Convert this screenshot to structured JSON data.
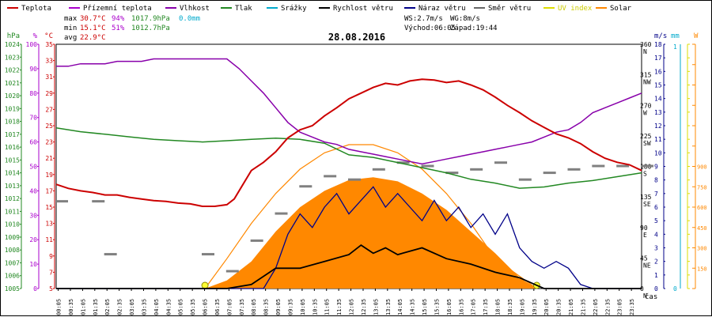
{
  "chart_data": {
    "type": "line",
    "title": "28.08.2016",
    "xlabel": "čas",
    "x_ticks": [
      "00:05",
      "00:35",
      "01:05",
      "01:35",
      "02:05",
      "02:35",
      "03:05",
      "03:35",
      "04:05",
      "04:35",
      "05:05",
      "05:35",
      "06:05",
      "06:35",
      "07:05",
      "07:35",
      "08:05",
      "08:35",
      "09:05",
      "09:35",
      "10:05",
      "10:35",
      "11:05",
      "11:35",
      "12:05",
      "12:35",
      "13:05",
      "13:35",
      "14:05",
      "14:35",
      "15:05",
      "15:35",
      "16:05",
      "16:35",
      "17:05",
      "17:35",
      "18:05",
      "18:35",
      "19:05",
      "19:35",
      "20:05",
      "20:35",
      "21:05",
      "21:35",
      "22:05",
      "22:35",
      "23:05",
      "23:35"
    ],
    "x_range_hours": [
      0,
      24
    ],
    "legend": [
      {
        "name": "Teplota",
        "color": "#cc0000"
      },
      {
        "name": "Přízemní teplota",
        "color": "#aa00cc"
      },
      {
        "name": "Vlhkost",
        "color": "#8800aa"
      },
      {
        "name": "Tlak",
        "color": "#228822"
      },
      {
        "name": "Srážky",
        "color": "#00aacc"
      },
      {
        "name": "Rychlost větru",
        "color": "#000000"
      },
      {
        "name": "Náraz větru",
        "color": "#000088"
      },
      {
        "name": "Směr větru",
        "color": "#666666"
      },
      {
        "name": "UV index",
        "color": "#dddd00"
      },
      {
        "name": "Solar",
        "color": "#ff8800"
      }
    ],
    "stats": {
      "max_label": "max",
      "max_temp": "30.7°C",
      "max_hum": "94%",
      "max_press": "1017.9hPa",
      "max_rain": "0.0mm",
      "min_label": "min",
      "min_temp": "15.1°C",
      "min_hum": "51%",
      "min_press": "1012.7hPa",
      "avg_label": "avg",
      "avg_temp": "22.9°C",
      "ws": "WS:2.7m/s",
      "wg": "WG:8m/s",
      "sunrise": "Východ:06:05",
      "sunset": "Západ:19:44"
    },
    "axes": {
      "hpa": {
        "label": "hPa",
        "min": 1005,
        "max": 1024,
        "step": 1,
        "color": "#228822"
      },
      "pct": {
        "label": "%",
        "min": 0,
        "max": 100,
        "step": 10,
        "color": "#aa00cc"
      },
      "temp": {
        "label": "°C",
        "min": 5,
        "max": 35,
        "step": 2,
        "color": "#cc0000"
      },
      "dir": {
        "label": "",
        "min": 0,
        "max": 360,
        "ticks": [
          {
            "v": 0,
            "t": "0"
          },
          {
            "v": 45,
            "t": "45"
          },
          {
            "v": 90,
            "t": "90"
          },
          {
            "v": 135,
            "t": "135"
          },
          {
            "v": 180,
            "t": "180"
          },
          {
            "v": 225,
            "t": "225"
          },
          {
            "v": 270,
            "t": "270"
          },
          {
            "v": 315,
            "t": "315"
          },
          {
            "v": 360,
            "t": "360"
          }
        ],
        "compass": [
          "N",
          "NE",
          "E",
          "SE",
          "S",
          "SW",
          "W",
          "NW",
          "N"
        ]
      },
      "ms": {
        "label": "m/s",
        "min": 0,
        "max": 18,
        "step": 1,
        "color": "#000088"
      },
      "mm": {
        "label": "mm",
        "min": 0,
        "max": 1,
        "ticks": [
          "0",
          "1"
        ],
        "color": "#00aacc"
      },
      "uv": {
        "label": "",
        "min": 0,
        "max": 18,
        "step": 1,
        "color": "#dddd00"
      },
      "w": {
        "label": "W",
        "min": 0,
        "max": 1800,
        "step": 150,
        "color": "#ff8800"
      }
    },
    "series": {
      "temperature": {
        "name": "Teplota",
        "unit": "°C",
        "points": [
          [
            0,
            17.8
          ],
          [
            0.5,
            17.3
          ],
          [
            1,
            17.0
          ],
          [
            1.5,
            16.8
          ],
          [
            2,
            16.5
          ],
          [
            2.5,
            16.5
          ],
          [
            3,
            16.2
          ],
          [
            3.5,
            16.0
          ],
          [
            4,
            15.8
          ],
          [
            4.5,
            15.7
          ],
          [
            5,
            15.5
          ],
          [
            5.5,
            15.4
          ],
          [
            6,
            15.1
          ],
          [
            6.5,
            15.1
          ],
          [
            7,
            15.3
          ],
          [
            7.3,
            16.0
          ],
          [
            7.6,
            17.5
          ],
          [
            8,
            19.5
          ],
          [
            8.5,
            20.5
          ],
          [
            9,
            21.8
          ],
          [
            9.5,
            23.5
          ],
          [
            10,
            24.5
          ],
          [
            10.5,
            25.0
          ],
          [
            11,
            26.2
          ],
          [
            11.5,
            27.2
          ],
          [
            12,
            28.3
          ],
          [
            12.5,
            29.0
          ],
          [
            13,
            29.7
          ],
          [
            13.5,
            30.2
          ],
          [
            14,
            30.0
          ],
          [
            14.5,
            30.5
          ],
          [
            15,
            30.7
          ],
          [
            15.5,
            30.6
          ],
          [
            16,
            30.3
          ],
          [
            16.5,
            30.5
          ],
          [
            17,
            30.0
          ],
          [
            17.5,
            29.4
          ],
          [
            18,
            28.5
          ],
          [
            18.5,
            27.5
          ],
          [
            19,
            26.6
          ],
          [
            19.5,
            25.6
          ],
          [
            20,
            24.8
          ],
          [
            20.5,
            24.0
          ],
          [
            21,
            23.5
          ],
          [
            21.5,
            22.8
          ],
          [
            22,
            21.8
          ],
          [
            22.5,
            21.0
          ],
          [
            23,
            20.5
          ],
          [
            23.5,
            20.2
          ],
          [
            24,
            19.5
          ]
        ]
      },
      "humidity": {
        "name": "Vlhkost",
        "unit": "%",
        "points": [
          [
            0,
            91
          ],
          [
            0.5,
            91
          ],
          [
            1,
            92
          ],
          [
            1.5,
            92
          ],
          [
            2,
            92
          ],
          [
            2.5,
            93
          ],
          [
            3,
            93
          ],
          [
            3.5,
            93
          ],
          [
            4,
            94
          ],
          [
            4.5,
            94
          ],
          [
            5,
            94
          ],
          [
            5.5,
            94
          ],
          [
            6,
            94
          ],
          [
            6.5,
            94
          ],
          [
            7,
            94
          ],
          [
            7.5,
            90
          ],
          [
            8,
            85
          ],
          [
            8.5,
            80
          ],
          [
            9,
            74
          ],
          [
            9.5,
            68
          ],
          [
            10,
            64
          ],
          [
            10.5,
            62
          ],
          [
            11,
            60
          ],
          [
            11.5,
            59
          ],
          [
            12,
            57
          ],
          [
            12.5,
            56
          ],
          [
            13,
            55
          ],
          [
            13.5,
            54
          ],
          [
            14,
            53
          ],
          [
            14.5,
            52
          ],
          [
            15,
            51
          ],
          [
            15.5,
            52
          ],
          [
            16,
            53
          ],
          [
            16.5,
            54
          ],
          [
            17,
            55
          ],
          [
            17.5,
            56
          ],
          [
            18,
            57
          ],
          [
            18.5,
            58
          ],
          [
            19,
            59
          ],
          [
            19.5,
            60
          ],
          [
            20,
            62
          ],
          [
            20.5,
            64
          ],
          [
            21,
            65
          ],
          [
            21.5,
            68
          ],
          [
            22,
            72
          ],
          [
            22.5,
            74
          ],
          [
            23,
            76
          ],
          [
            23.5,
            78
          ],
          [
            24,
            80
          ]
        ]
      },
      "pressure": {
        "name": "Tlak",
        "unit": "hPa",
        "points": [
          [
            0,
            1017.5
          ],
          [
            1,
            1017.2
          ],
          [
            2,
            1017.0
          ],
          [
            3,
            1016.8
          ],
          [
            4,
            1016.6
          ],
          [
            5,
            1016.5
          ],
          [
            6,
            1016.4
          ],
          [
            7,
            1016.5
          ],
          [
            8,
            1016.6
          ],
          [
            9,
            1016.7
          ],
          [
            10,
            1016.6
          ],
          [
            11,
            1016.3
          ],
          [
            12,
            1015.4
          ],
          [
            13,
            1015.2
          ],
          [
            14,
            1014.8
          ],
          [
            15,
            1014.4
          ],
          [
            16,
            1014.0
          ],
          [
            17,
            1013.5
          ],
          [
            18,
            1013.2
          ],
          [
            19,
            1012.8
          ],
          [
            20,
            1012.9
          ],
          [
            21,
            1013.2
          ],
          [
            22,
            1013.4
          ],
          [
            23,
            1013.7
          ],
          [
            24,
            1014.0
          ]
        ]
      },
      "wind_speed": {
        "name": "Rychlost větru",
        "unit": "m/s",
        "points": [
          [
            0,
            0
          ],
          [
            7,
            0
          ],
          [
            8,
            0.3
          ],
          [
            9,
            1.5
          ],
          [
            10,
            1.5
          ],
          [
            11,
            2.0
          ],
          [
            12,
            2.5
          ],
          [
            12.5,
            3.2
          ],
          [
            13,
            2.6
          ],
          [
            13.5,
            3.0
          ],
          [
            14,
            2.5
          ],
          [
            15,
            3.0
          ],
          [
            16,
            2.2
          ],
          [
            17,
            1.8
          ],
          [
            18,
            1.2
          ],
          [
            19,
            0.8
          ],
          [
            20,
            0
          ],
          [
            24,
            0
          ]
        ]
      },
      "wind_gust": {
        "name": "Náraz větru",
        "unit": "m/s",
        "points": [
          [
            0,
            0
          ],
          [
            8.5,
            0
          ],
          [
            9,
            1.5
          ],
          [
            9.5,
            4.0
          ],
          [
            10,
            5.5
          ],
          [
            10.5,
            4.5
          ],
          [
            11,
            6.0
          ],
          [
            11.5,
            7.0
          ],
          [
            12,
            5.5
          ],
          [
            12.5,
            6.5
          ],
          [
            13,
            7.5
          ],
          [
            13.5,
            6.0
          ],
          [
            14,
            7.0
          ],
          [
            14.5,
            6.0
          ],
          [
            15,
            5.0
          ],
          [
            15.5,
            6.5
          ],
          [
            16,
            5.0
          ],
          [
            16.5,
            6.0
          ],
          [
            17,
            4.5
          ],
          [
            17.5,
            5.5
          ],
          [
            18,
            4.0
          ],
          [
            18.5,
            5.5
          ],
          [
            19,
            3.0
          ],
          [
            19.5,
            2.0
          ],
          [
            20,
            1.5
          ],
          [
            20.5,
            2.0
          ],
          [
            21,
            1.5
          ],
          [
            21.5,
            0.3
          ],
          [
            22,
            0
          ],
          [
            24,
            0
          ]
        ]
      },
      "solar": {
        "name": "Solar",
        "unit": "W",
        "points": [
          [
            6.1,
            0
          ],
          [
            7,
            60
          ],
          [
            8,
            200
          ],
          [
            9,
            420
          ],
          [
            10,
            600
          ],
          [
            11,
            720
          ],
          [
            12,
            800
          ],
          [
            13,
            820
          ],
          [
            14,
            790
          ],
          [
            15,
            700
          ],
          [
            16,
            580
          ],
          [
            17,
            420
          ],
          [
            18,
            260
          ],
          [
            19,
            80
          ],
          [
            19.7,
            0
          ]
        ]
      },
      "solar_theoretical": {
        "name": "Solar",
        "unit": "W",
        "points": [
          [
            6.1,
            0
          ],
          [
            7,
            220
          ],
          [
            8,
            480
          ],
          [
            9,
            700
          ],
          [
            10,
            880
          ],
          [
            11,
            1000
          ],
          [
            12,
            1060
          ],
          [
            13,
            1060
          ],
          [
            14,
            1000
          ],
          [
            15,
            880
          ],
          [
            16,
            700
          ],
          [
            17,
            480
          ],
          [
            18,
            220
          ],
          [
            19.7,
            0
          ]
        ]
      },
      "wind_direction": {
        "name": "Směr větru",
        "unit": "°",
        "points": [
          [
            0,
            128
          ],
          [
            1.5,
            128
          ],
          [
            2,
            50
          ],
          [
            6,
            50
          ],
          [
            7,
            25
          ],
          [
            8,
            70
          ],
          [
            9,
            110
          ],
          [
            10,
            150
          ],
          [
            11,
            165
          ],
          [
            12,
            160
          ],
          [
            13,
            175
          ],
          [
            14,
            185
          ],
          [
            15,
            180
          ],
          [
            16,
            170
          ],
          [
            17,
            175
          ],
          [
            18,
            185
          ],
          [
            19,
            160
          ],
          [
            20,
            170
          ],
          [
            21,
            175
          ],
          [
            22,
            180
          ],
          [
            23,
            180
          ],
          [
            24,
            180
          ]
        ]
      }
    }
  }
}
